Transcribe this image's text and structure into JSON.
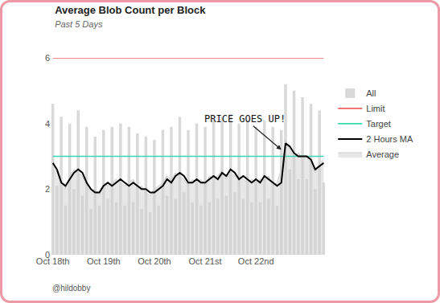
{
  "chart_data": {
    "type": "line",
    "title": "Average Blob Count per Block",
    "subtitle": "Past 5 Days",
    "caption": "@hildobby",
    "categories": [
      "Oct 18th",
      null,
      null,
      null,
      null,
      null,
      null,
      null,
      null,
      null,
      null,
      null,
      "Oct 19th",
      null,
      null,
      null,
      null,
      null,
      null,
      null,
      null,
      null,
      null,
      null,
      "Oct 20th",
      null,
      null,
      null,
      null,
      null,
      null,
      null,
      null,
      null,
      null,
      null,
      "Oct 21st",
      null,
      null,
      null,
      null,
      null,
      null,
      null,
      null,
      null,
      null,
      null,
      "Oct 22nd",
      null,
      null,
      null,
      null,
      null,
      null,
      null,
      null,
      null,
      null,
      null,
      null,
      null,
      null,
      null,
      null
    ],
    "ylim": [
      0,
      6
    ],
    "yticks": [
      0,
      2,
      4,
      6
    ],
    "grid": false,
    "legend": "right",
    "annotations": [
      {
        "text": "PRICE GOES UP!",
        "x": 54,
        "y": 3.2
      }
    ],
    "series": [
      {
        "name": "All",
        "type": "bar",
        "color": "#555555",
        "values": [
          4.6,
          2.1,
          4.2,
          1.5,
          4.0,
          2.0,
          4.4,
          1.8,
          3.9,
          1.4,
          3.6,
          1.5,
          3.8,
          1.7,
          3.9,
          1.6,
          4.0,
          1.5,
          3.9,
          1.6,
          3.7,
          1.4,
          3.6,
          1.3,
          3.5,
          1.5,
          3.8,
          1.8,
          3.9,
          1.7,
          4.2,
          1.9,
          3.8,
          1.6,
          4.0,
          1.5,
          3.9,
          1.6,
          4.1,
          1.7,
          4.2,
          1.8,
          4.3,
          1.9,
          4.0,
          1.7,
          4.1,
          1.6,
          3.9,
          1.6,
          4.1,
          1.7,
          3.9,
          1.5,
          3.8,
          5.2,
          2.6,
          5.0,
          2.3,
          4.8,
          2.3,
          4.6,
          2.0,
          4.4,
          2.2
        ]
      },
      {
        "name": "Limit",
        "type": "line",
        "color": "#f0605d",
        "values": [
          6,
          6,
          6,
          6,
          6,
          6,
          6,
          6,
          6,
          6,
          6,
          6,
          6,
          6,
          6,
          6,
          6,
          6,
          6,
          6,
          6,
          6,
          6,
          6,
          6,
          6,
          6,
          6,
          6,
          6,
          6,
          6,
          6,
          6,
          6,
          6,
          6,
          6,
          6,
          6,
          6,
          6,
          6,
          6,
          6,
          6,
          6,
          6,
          6,
          6,
          6,
          6,
          6,
          6,
          6,
          6,
          6,
          6,
          6,
          6,
          6,
          6,
          6,
          6,
          6
        ]
      },
      {
        "name": "Target",
        "type": "line",
        "color": "#3ad6b4",
        "values": [
          3,
          3,
          3,
          3,
          3,
          3,
          3,
          3,
          3,
          3,
          3,
          3,
          3,
          3,
          3,
          3,
          3,
          3,
          3,
          3,
          3,
          3,
          3,
          3,
          3,
          3,
          3,
          3,
          3,
          3,
          3,
          3,
          3,
          3,
          3,
          3,
          3,
          3,
          3,
          3,
          3,
          3,
          3,
          3,
          3,
          3,
          3,
          3,
          3,
          3,
          3,
          3,
          3,
          3,
          3,
          3,
          3,
          3,
          3,
          3,
          3,
          3,
          3,
          3,
          3
        ]
      },
      {
        "name": "2 Hours MA",
        "type": "line",
        "color": "#000000",
        "values": [
          2.8,
          2.6,
          2.2,
          2.1,
          2.3,
          2.5,
          2.6,
          2.5,
          2.2,
          2.0,
          1.9,
          1.9,
          2.1,
          2.2,
          2.1,
          2.2,
          2.3,
          2.2,
          2.1,
          2.2,
          2.1,
          2.0,
          2.0,
          1.9,
          1.9,
          2.0,
          2.1,
          2.3,
          2.2,
          2.4,
          2.5,
          2.4,
          2.2,
          2.2,
          2.3,
          2.2,
          2.2,
          2.3,
          2.4,
          2.3,
          2.5,
          2.4,
          2.6,
          2.5,
          2.3,
          2.4,
          2.3,
          2.2,
          2.3,
          2.2,
          2.4,
          2.3,
          2.2,
          2.1,
          2.2,
          3.4,
          3.3,
          3.1,
          3.0,
          3.0,
          3.0,
          2.9,
          2.6,
          2.7,
          2.8
        ]
      },
      {
        "name": "Average",
        "type": "area",
        "color": "#cfcfcf",
        "values": [
          2.9,
          2.5,
          2.3,
          2.0,
          2.4,
          2.6,
          2.5,
          2.4,
          2.1,
          1.9,
          2.0,
          1.8,
          2.2,
          2.1,
          2.2,
          2.3,
          2.2,
          2.1,
          2.2,
          2.3,
          2.0,
          2.1,
          1.9,
          1.8,
          2.0,
          2.1,
          2.2,
          2.4,
          2.3,
          2.5,
          2.4,
          2.3,
          2.1,
          2.3,
          2.2,
          2.3,
          2.1,
          2.4,
          2.3,
          2.4,
          2.6,
          2.3,
          2.5,
          2.4,
          2.4,
          2.3,
          2.2,
          2.3,
          2.2,
          2.3,
          2.3,
          2.4,
          2.1,
          2.2,
          2.6,
          3.5,
          3.2,
          3.0,
          3.1,
          2.9,
          3.0,
          2.8,
          2.5,
          2.8,
          2.9
        ]
      }
    ]
  }
}
